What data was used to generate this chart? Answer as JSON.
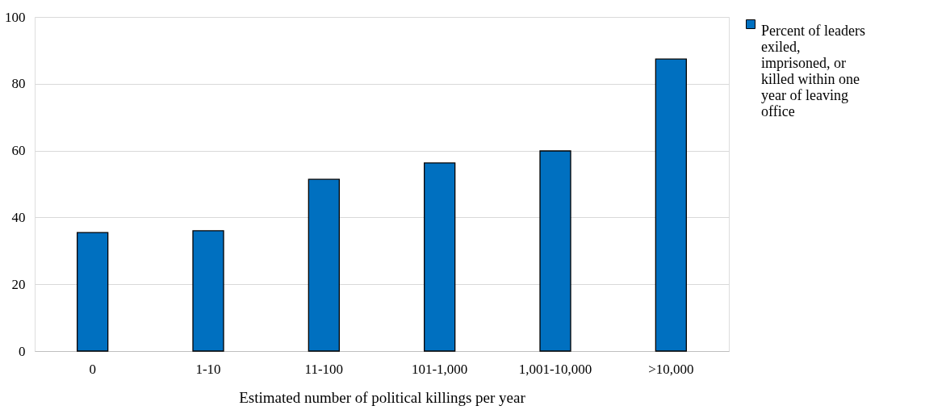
{
  "chart_data": {
    "type": "bar",
    "xlabel": "Estimated number of political killings per year",
    "categories": [
      "0",
      "1-10",
      "11-100",
      "101-1,000",
      "1,001-10,000",
      ">10,000"
    ],
    "series": [
      {
        "name": "Percent of leaders exiled, imprisoned, or killed within one year of leaving office",
        "color": "#0070c0",
        "values": [
          35.5,
          36.0,
          51.4,
          56.3,
          59.9,
          87.4
        ]
      }
    ],
    "ylim": [
      0,
      100
    ],
    "yticks": [
      0,
      20,
      40,
      60,
      80,
      100
    ],
    "grid": "y",
    "legend": "right"
  }
}
